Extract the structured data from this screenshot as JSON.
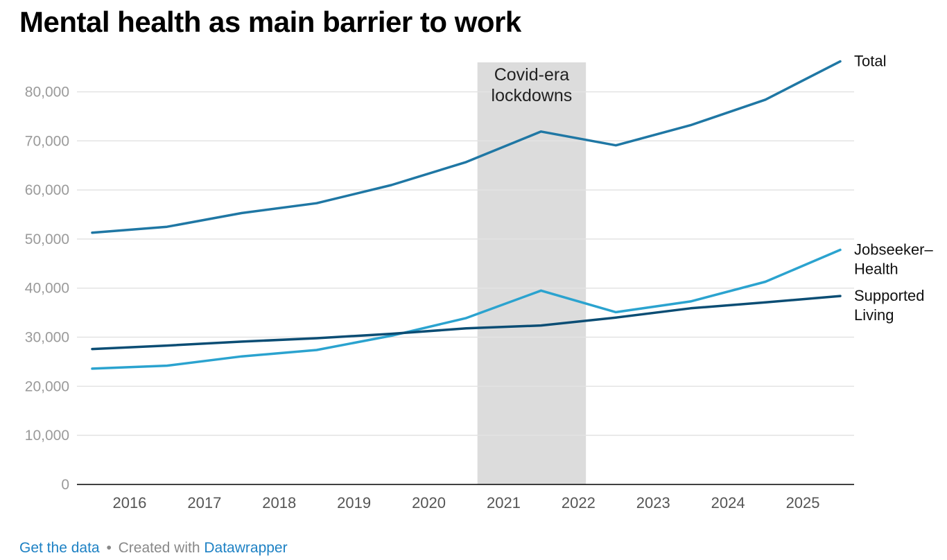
{
  "title": "Mental health as main barrier to work",
  "footer": {
    "get_data": "Get the data",
    "separator": "•",
    "created_with": "Created with",
    "tool": "Datawrapper"
  },
  "colors": {
    "total": "#1f77a4",
    "jobseeker": "#2ba3cf",
    "supported": "#0b4d74",
    "band": "#dcdcdc",
    "grid": "#e3e3e3",
    "tick": "#9a9a9a",
    "axis": "#000000"
  },
  "chart_data": {
    "type": "line",
    "title": "Mental health as main barrier to work",
    "xlabel": "",
    "ylabel": "",
    "x": [
      2015.5,
      2016.5,
      2017.5,
      2018.5,
      2019.5,
      2020.5,
      2021.5,
      2022.5,
      2023.5,
      2024.5,
      2025.5
    ],
    "xlim": [
      2015.5,
      2025.5
    ],
    "ylim": [
      0,
      86000
    ],
    "x_ticks": [
      {
        "value": 2016,
        "label": "2016"
      },
      {
        "value": 2017,
        "label": "2017"
      },
      {
        "value": 2018,
        "label": "2018"
      },
      {
        "value": 2019,
        "label": "2019"
      },
      {
        "value": 2020,
        "label": "2020"
      },
      {
        "value": 2021,
        "label": "2021"
      },
      {
        "value": 2022,
        "label": "2022"
      },
      {
        "value": 2023,
        "label": "2023"
      },
      {
        "value": 2024,
        "label": "2024"
      },
      {
        "value": 2025,
        "label": "2025"
      }
    ],
    "y_ticks": [
      {
        "value": 0,
        "label": "0"
      },
      {
        "value": 10000,
        "label": "10,000"
      },
      {
        "value": 20000,
        "label": "20,000"
      },
      {
        "value": 30000,
        "label": "30,000"
      },
      {
        "value": 40000,
        "label": "40,000"
      },
      {
        "value": 50000,
        "label": "50,000"
      },
      {
        "value": 60000,
        "label": "60,000"
      },
      {
        "value": 70000,
        "label": "70,000"
      },
      {
        "value": 80000,
        "label": "80,000"
      }
    ],
    "grid": true,
    "series": [
      {
        "key": "total",
        "name": "Total",
        "label_lines": [
          "Total"
        ],
        "values": [
          51300,
          52500,
          55300,
          57300,
          61000,
          65700,
          71900,
          69100,
          73200,
          78400,
          86200
        ]
      },
      {
        "key": "jobseeker",
        "name": "Jobseeker–Health",
        "label_lines": [
          "Jobseeker–",
          "Health"
        ],
        "values": [
          23600,
          24200,
          26100,
          27400,
          30300,
          33900,
          39500,
          35100,
          37300,
          41300,
          47800
        ]
      },
      {
        "key": "supported",
        "name": "Supported Living",
        "label_lines": [
          "Supported",
          "Living"
        ],
        "values": [
          27600,
          28300,
          29100,
          29800,
          30700,
          31800,
          32400,
          34000,
          35900,
          37100,
          38400
        ]
      }
    ],
    "annotations": [
      {
        "type": "band",
        "x_start": 2020.65,
        "x_end": 2022.1,
        "label_lines": [
          "Covid-era",
          "lockdowns"
        ]
      }
    ]
  }
}
